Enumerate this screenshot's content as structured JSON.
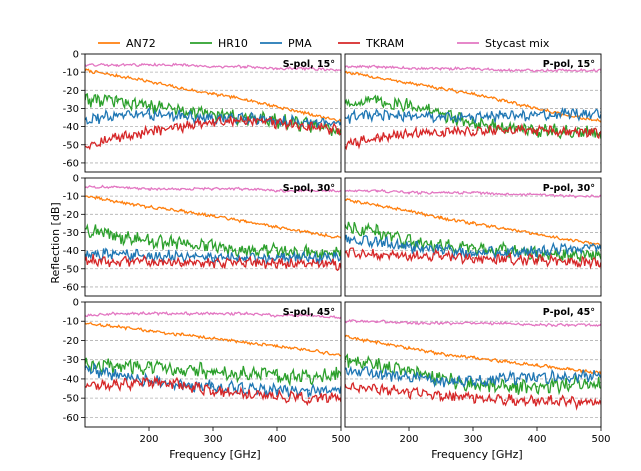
{
  "chart_data": {
    "type": "line",
    "legend": {
      "placement": "top",
      "entries": [
        "AN72",
        "HR10",
        "PMA",
        "TKRAM",
        "Stycast mix"
      ]
    },
    "colors": {
      "AN72": "#ff7f0e",
      "HR10": "#2ca02c",
      "PMA": "#1f77b4",
      "TKRAM": "#d62728",
      "Stycast mix": "#e377c2"
    },
    "xlabel": "Frequency [GHz]",
    "ylabel": "Reflection [dB]",
    "xlim": [
      100,
      500
    ],
    "ylim": [
      -65,
      0
    ],
    "xticks": [
      "200",
      "300",
      "400",
      "500"
    ],
    "yticks": [
      "0",
      "-10",
      "-20",
      "-30",
      "-40",
      "-50",
      "-60"
    ],
    "grid": "horizontal dashed",
    "panels": [
      {
        "label": "S-pol, 15°",
        "series": [
          {
            "name": "AN72",
            "x": [
              100,
              150,
              200,
              250,
              300,
              350,
              400,
              450,
              500
            ],
            "values": [
              -9,
              -12,
              -15,
              -19,
              -22,
              -25,
              -29,
              -33,
              -37
            ]
          },
          {
            "name": "HR10",
            "x": [
              100,
              150,
              200,
              250,
              300,
              350,
              400,
              450,
              500
            ],
            "values": [
              -25,
              -26,
              -28,
              -31,
              -33,
              -35,
              -37,
              -39,
              -42
            ]
          },
          {
            "name": "PMA",
            "x": [
              100,
              150,
              200,
              250,
              300,
              350,
              400,
              450,
              500
            ],
            "values": [
              -36,
              -34,
              -33,
              -34,
              -36,
              -35,
              -37,
              -38,
              -39
            ]
          },
          {
            "name": "TKRAM",
            "x": [
              100,
              150,
              200,
              250,
              300,
              350,
              400,
              450,
              500
            ],
            "values": [
              -50,
              -46,
              -43,
              -40,
              -37,
              -37,
              -38,
              -40,
              -42
            ]
          },
          {
            "name": "Stycast mix",
            "x": [
              100,
              150,
              200,
              250,
              300,
              350,
              400,
              450,
              500
            ],
            "values": [
              -6,
              -6,
              -6,
              -6,
              -7,
              -7,
              -8,
              -8,
              -9
            ]
          }
        ]
      },
      {
        "label": "P-pol, 15°",
        "series": [
          {
            "name": "AN72",
            "x": [
              100,
              150,
              200,
              250,
              300,
              350,
              400,
              450,
              500
            ],
            "values": [
              -10,
              -13,
              -16,
              -19,
              -22,
              -26,
              -30,
              -34,
              -37
            ]
          },
          {
            "name": "HR10",
            "x": [
              100,
              150,
              200,
              250,
              300,
              350,
              400,
              450,
              500
            ],
            "values": [
              -27,
              -26,
              -28,
              -33,
              -38,
              -41,
              -42,
              -43,
              -44
            ]
          },
          {
            "name": "PMA",
            "x": [
              100,
              150,
              200,
              250,
              300,
              350,
              400,
              450,
              500
            ],
            "values": [
              -35,
              -34,
              -34,
              -35,
              -35,
              -34,
              -34,
              -33,
              -32
            ]
          },
          {
            "name": "TKRAM",
            "x": [
              100,
              150,
              200,
              250,
              300,
              350,
              400,
              450,
              500
            ],
            "values": [
              -50,
              -46,
              -44,
              -43,
              -42,
              -42,
              -42,
              -43,
              -43
            ]
          },
          {
            "name": "Stycast mix",
            "x": [
              100,
              150,
              200,
              250,
              300,
              350,
              400,
              450,
              500
            ],
            "values": [
              -7,
              -7,
              -8,
              -8,
              -8,
              -9,
              -9,
              -9,
              -9
            ]
          }
        ]
      },
      {
        "label": "S-pol, 30°",
        "series": [
          {
            "name": "AN72",
            "x": [
              100,
              150,
              200,
              250,
              300,
              350,
              400,
              450,
              500
            ],
            "values": [
              -10,
              -13,
              -16,
              -18,
              -21,
              -24,
              -27,
              -30,
              -33
            ]
          },
          {
            "name": "HR10",
            "x": [
              100,
              150,
              200,
              250,
              300,
              350,
              400,
              450,
              500
            ],
            "values": [
              -28,
              -32,
              -35,
              -36,
              -38,
              -39,
              -40,
              -41,
              -40
            ]
          },
          {
            "name": "PMA",
            "x": [
              100,
              150,
              200,
              250,
              300,
              350,
              400,
              450,
              500
            ],
            "values": [
              -42,
              -42,
              -43,
              -43,
              -44,
              -44,
              -44,
              -44,
              -44
            ]
          },
          {
            "name": "TKRAM",
            "x": [
              100,
              150,
              200,
              250,
              300,
              350,
              400,
              450,
              500
            ],
            "values": [
              -45,
              -46,
              -46,
              -47,
              -47,
              -46,
              -47,
              -47,
              -48
            ]
          },
          {
            "name": "Stycast mix",
            "x": [
              100,
              150,
              200,
              250,
              300,
              350,
              400,
              450,
              500
            ],
            "values": [
              -5,
              -5,
              -6,
              -6,
              -6,
              -6,
              -7,
              -7,
              -7
            ]
          }
        ]
      },
      {
        "label": "P-pol, 30°",
        "series": [
          {
            "name": "AN72",
            "x": [
              100,
              150,
              200,
              250,
              300,
              350,
              400,
              450,
              500
            ],
            "values": [
              -12,
              -15,
              -18,
              -22,
              -25,
              -28,
              -31,
              -34,
              -37
            ]
          },
          {
            "name": "HR10",
            "x": [
              100,
              150,
              200,
              250,
              300,
              350,
              400,
              450,
              500
            ],
            "values": [
              -26,
              -30,
              -35,
              -37,
              -39,
              -40,
              -42,
              -43,
              -42
            ]
          },
          {
            "name": "PMA",
            "x": [
              100,
              150,
              200,
              250,
              300,
              350,
              400,
              450,
              500
            ],
            "values": [
              -34,
              -35,
              -38,
              -40,
              -41,
              -41,
              -40,
              -39,
              -38
            ]
          },
          {
            "name": "TKRAM",
            "x": [
              100,
              150,
              200,
              250,
              300,
              350,
              400,
              450,
              500
            ],
            "values": [
              -41,
              -42,
              -43,
              -43,
              -44,
              -45,
              -45,
              -46,
              -47
            ]
          },
          {
            "name": "Stycast mix",
            "x": [
              100,
              150,
              200,
              250,
              300,
              350,
              400,
              450,
              500
            ],
            "values": [
              -7,
              -7,
              -8,
              -8,
              -8,
              -9,
              -9,
              -10,
              -10
            ]
          }
        ]
      },
      {
        "label": "S-pol, 45°",
        "series": [
          {
            "name": "AN72",
            "x": [
              100,
              150,
              200,
              250,
              300,
              350,
              400,
              450,
              500
            ],
            "values": [
              -11,
              -13,
              -15,
              -17,
              -19,
              -21,
              -23,
              -25,
              -28
            ]
          },
          {
            "name": "HR10",
            "x": [
              100,
              150,
              200,
              250,
              300,
              350,
              400,
              450,
              500
            ],
            "values": [
              -33,
              -33,
              -34,
              -35,
              -36,
              -37,
              -38,
              -39,
              -38
            ]
          },
          {
            "name": "PMA",
            "x": [
              100,
              150,
              200,
              250,
              300,
              350,
              400,
              450,
              500
            ],
            "values": [
              -35,
              -38,
              -41,
              -43,
              -44,
              -45,
              -46,
              -46,
              -45
            ]
          },
          {
            "name": "TKRAM",
            "x": [
              100,
              150,
              200,
              250,
              300,
              350,
              400,
              450,
              500
            ],
            "values": [
              -44,
              -43,
              -42,
              -43,
              -46,
              -48,
              -49,
              -50,
              -50
            ]
          },
          {
            "name": "Stycast mix",
            "x": [
              100,
              150,
              200,
              250,
              300,
              350,
              400,
              450,
              500
            ],
            "values": [
              -7,
              -6,
              -6,
              -6,
              -6,
              -6,
              -7,
              -7,
              -8
            ]
          }
        ]
      },
      {
        "label": "P-pol, 45°",
        "series": [
          {
            "name": "AN72",
            "x": [
              100,
              150,
              200,
              250,
              300,
              350,
              400,
              450,
              500
            ],
            "values": [
              -18,
              -21,
              -24,
              -27,
              -29,
              -31,
              -33,
              -35,
              -37
            ]
          },
          {
            "name": "HR10",
            "x": [
              100,
              150,
              200,
              250,
              300,
              350,
              400,
              450,
              500
            ],
            "values": [
              -31,
              -33,
              -36,
              -40,
              -43,
              -44,
              -44,
              -43,
              -42
            ]
          },
          {
            "name": "PMA",
            "x": [
              100,
              150,
              200,
              250,
              300,
              350,
              400,
              450,
              500
            ],
            "values": [
              -35,
              -37,
              -39,
              -41,
              -41,
              -40,
              -39,
              -39,
              -38
            ]
          },
          {
            "name": "TKRAM",
            "x": [
              100,
              150,
              200,
              250,
              300,
              350,
              400,
              450,
              500
            ],
            "values": [
              -43,
              -45,
              -47,
              -48,
              -50,
              -51,
              -51,
              -52,
              -53
            ]
          },
          {
            "name": "Stycast mix",
            "x": [
              100,
              150,
              200,
              250,
              300,
              350,
              400,
              450,
              500
            ],
            "values": [
              -10,
              -10,
              -11,
              -11,
              -11,
              -11,
              -12,
              -12,
              -12
            ]
          }
        ]
      }
    ]
  }
}
